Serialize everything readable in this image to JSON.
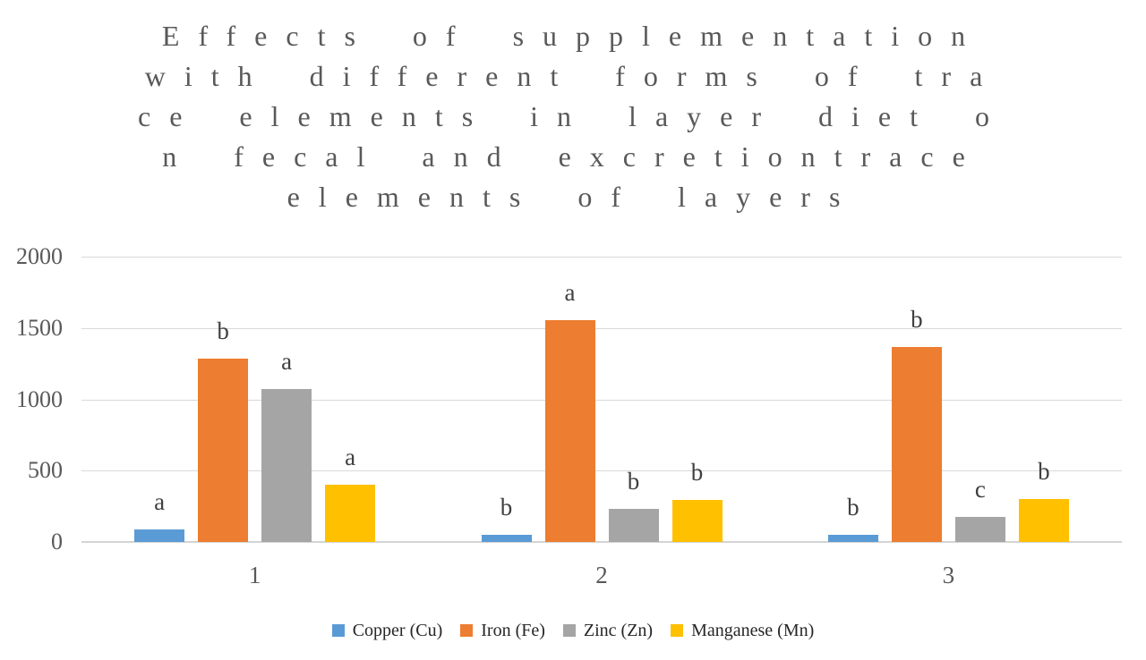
{
  "title": {
    "full": "Effects of supplementation with different forms of trace elements in layer diet on fecal and excretion trace elements of layers",
    "lines": [
      "Effects of supplementation",
      "with different forms of tra",
      "ce elements in layer diet o",
      "n fecal and excretiontrace",
      "elements of layers"
    ]
  },
  "chart_data": {
    "type": "bar",
    "categories": [
      "1",
      "2",
      "3"
    ],
    "series": [
      {
        "name": "Copper (Cu)",
        "key": "copper",
        "color": "#5B9BD5",
        "values": [
          90,
          48,
          48
        ],
        "letters": [
          "a",
          "b",
          "b"
        ]
      },
      {
        "name": "Iron (Fe)",
        "key": "iron",
        "color": "#ED7D31",
        "values": [
          1285,
          1555,
          1365
        ],
        "letters": [
          "b",
          "a",
          "b"
        ]
      },
      {
        "name": "Zinc (Zn)",
        "key": "zinc",
        "color": "#A5A5A5",
        "values": [
          1075,
          235,
          175
        ],
        "letters": [
          "a",
          "b",
          "c"
        ]
      },
      {
        "name": "Manganese (Mn)",
        "key": "manganese",
        "color": "#FFC000",
        "values": [
          400,
          295,
          300
        ],
        "letters": [
          "a",
          "b",
          "b"
        ]
      }
    ],
    "ylim": [
      0,
      2000
    ],
    "yticks": [
      0,
      500,
      1000,
      1500,
      2000
    ],
    "grid": true,
    "legend_position": "bottom",
    "xlabel": "",
    "ylabel": ""
  },
  "colors": {
    "gridline": "#D9D9D9",
    "axis_line": "#D4D4D4",
    "title_text": "#595959",
    "tick_text": "#595959",
    "letter_text": "#404040",
    "legend_text": "#262626",
    "background": "#FFFFFF"
  }
}
